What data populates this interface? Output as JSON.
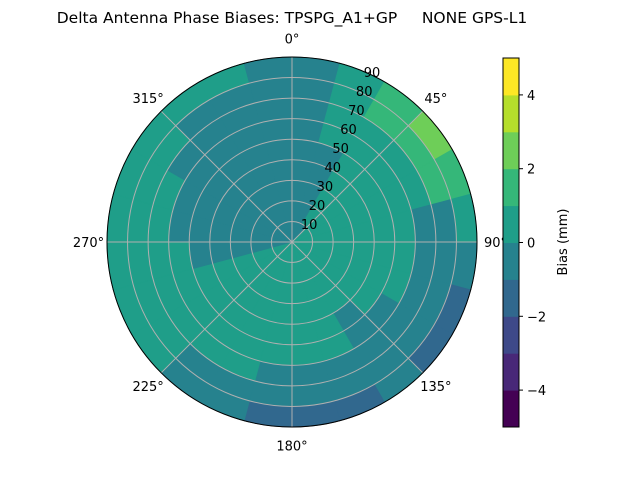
{
  "chart_data": {
    "type": "contour",
    "projection": "polar",
    "title": "Delta Antenna Phase Biases: TPSPG_A1+GP     NONE GPS-L1",
    "theta_zero": "north",
    "theta_direction": "clockwise",
    "theta_ticks": [
      "0°",
      "45°",
      "90°",
      "135°",
      "180°",
      "225°",
      "270°",
      "315°"
    ],
    "r_ticks": [
      "10",
      "20",
      "30",
      "40",
      "50",
      "60",
      "70",
      "80",
      "90"
    ],
    "rlim": [
      0,
      90
    ],
    "grid": true,
    "colormap": "viridis",
    "levels": [
      -5,
      -4,
      -3,
      -2,
      -1,
      0,
      1,
      2,
      3,
      4,
      5
    ],
    "level_colors": [
      "#440154",
      "#482878",
      "#3e4989",
      "#31688e",
      "#26828e",
      "#1f9e89",
      "#35b779",
      "#6ece58",
      "#b5de2b",
      "#fde725"
    ],
    "colorbar": {
      "label": "Bias (mm)",
      "ticks": [
        "−4",
        "−2",
        "0",
        "2",
        "4"
      ],
      "tick_values": [
        -4,
        -2,
        0,
        2,
        4
      ],
      "position": "right"
    },
    "azimuth_deg": [
      7.5,
      22.5,
      37.5,
      52.5,
      67.5,
      82.5,
      97.5,
      112.5,
      127.5,
      142.5,
      157.5,
      172.5,
      187.5,
      202.5,
      217.5,
      232.5,
      247.5,
      262.5,
      277.5,
      292.5,
      307.5,
      322.5,
      337.5,
      352.5
    ],
    "zenith_deg": [
      5,
      15,
      25,
      35,
      45,
      55,
      65,
      75,
      85
    ],
    "bias_mm": [
      [
        -0.5,
        -0.5,
        -0.5,
        -0.5,
        -0.5,
        -0.5,
        -0.5,
        -0.5,
        -0.5
      ],
      [
        -0.5,
        -0.5,
        -0.5,
        -0.5,
        -0.5,
        0.5,
        0.5,
        0.5,
        0.5
      ],
      [
        -0.5,
        0.5,
        0.5,
        0.5,
        0.5,
        0.5,
        0.5,
        1.5,
        1.5
      ],
      [
        0.5,
        0.5,
        0.5,
        0.5,
        0.5,
        0.5,
        0.5,
        1.5,
        2.5
      ],
      [
        0.5,
        0.5,
        0.5,
        0.5,
        0.5,
        0.5,
        0.5,
        1.5,
        1.5
      ],
      [
        0.5,
        0.5,
        0.5,
        0.5,
        0.5,
        0.5,
        -0.5,
        -0.5,
        0.5
      ],
      [
        0.5,
        0.5,
        0.5,
        0.5,
        0.5,
        0.5,
        -0.5,
        -0.5,
        -0.5
      ],
      [
        0.5,
        0.5,
        0.5,
        0.5,
        0.5,
        0.5,
        -0.5,
        -0.5,
        -1.5
      ],
      [
        0.5,
        0.5,
        0.5,
        0.5,
        0.5,
        -0.5,
        -0.5,
        -0.5,
        -1.5
      ],
      [
        0.5,
        0.5,
        0.5,
        0.5,
        -0.5,
        -0.5,
        -0.5,
        -0.5,
        -0.5
      ],
      [
        0.5,
        0.5,
        0.5,
        0.5,
        0.5,
        0.5,
        -0.5,
        -0.5,
        -1.5
      ],
      [
        0.5,
        0.5,
        0.5,
        0.5,
        0.5,
        0.5,
        -0.5,
        -0.5,
        -1.5
      ],
      [
        0.5,
        0.5,
        0.5,
        0.5,
        0.5,
        0.5,
        -0.5,
        -0.5,
        -1.5
      ],
      [
        0.5,
        0.5,
        0.5,
        0.5,
        0.5,
        0.5,
        0.5,
        -0.5,
        -0.5
      ],
      [
        0.5,
        0.5,
        0.5,
        0.5,
        0.5,
        0.5,
        0.5,
        -0.5,
        -0.5
      ],
      [
        0.5,
        0.5,
        0.5,
        0.5,
        0.5,
        0.5,
        0.5,
        0.5,
        0.5
      ],
      [
        0.5,
        0.5,
        0.5,
        0.5,
        0.5,
        0.5,
        0.5,
        0.5,
        0.5
      ],
      [
        -0.5,
        -0.5,
        -0.5,
        -0.5,
        -0.5,
        0.5,
        0.5,
        0.5,
        0.5
      ],
      [
        -0.5,
        -0.5,
        -0.5,
        -0.5,
        -0.5,
        -0.5,
        0.5,
        0.5,
        0.5
      ],
      [
        -0.5,
        -0.5,
        -0.5,
        -0.5,
        -0.5,
        -0.5,
        0.5,
        0.5,
        0.5
      ],
      [
        -0.5,
        -0.5,
        -0.5,
        -0.5,
        -0.5,
        -0.5,
        -0.5,
        0.5,
        0.5
      ],
      [
        -0.5,
        -0.5,
        -0.5,
        -0.5,
        -0.5,
        -0.5,
        -0.5,
        -0.5,
        0.5
      ],
      [
        -0.5,
        -0.5,
        -0.5,
        -0.5,
        -0.5,
        -0.5,
        -0.5,
        -0.5,
        0.5
      ],
      [
        -0.5,
        -0.5,
        -0.5,
        -0.5,
        -0.5,
        -0.5,
        -0.5,
        -0.5,
        -0.5
      ]
    ]
  }
}
